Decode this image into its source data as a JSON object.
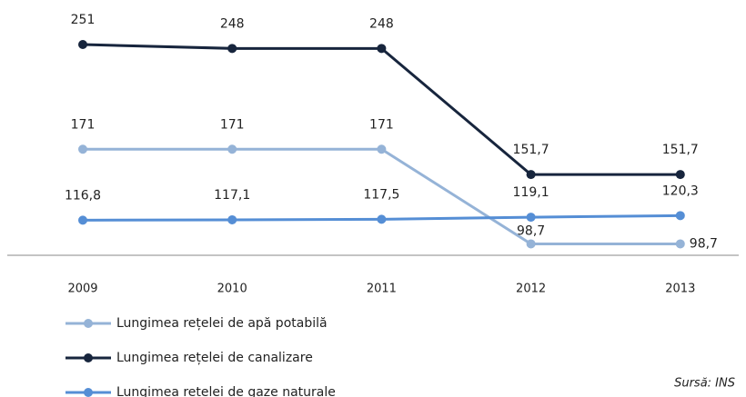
{
  "chart_data": {
    "type": "line",
    "categories": [
      "2009",
      "2010",
      "2011",
      "2012",
      "2013"
    ],
    "series": [
      {
        "name": "Lungimea rețelei de apă potabilă",
        "color": "#95b3d7",
        "values": [
          171,
          171,
          171,
          98.7,
          98.7
        ],
        "value_labels": [
          "171",
          "171",
          "171",
          "98,7",
          "98,7"
        ]
      },
      {
        "name": "Lungimea rețelei de canalizare",
        "color": "#17253d",
        "values": [
          251,
          248,
          248,
          151.7,
          151.7
        ],
        "value_labels": [
          "251",
          "248",
          "248",
          "151,7",
          "151,7"
        ]
      },
      {
        "name": "Lungimea rețelei de gaze naturale",
        "color": "#558ed5",
        "values": [
          116.8,
          117.1,
          117.5,
          119.1,
          120.3
        ],
        "value_labels": [
          "116,8",
          "117,1",
          "117,5",
          "119,1",
          "120,3"
        ]
      }
    ],
    "ylim": [
      90,
      285
    ],
    "source": "Sursă: INS"
  }
}
